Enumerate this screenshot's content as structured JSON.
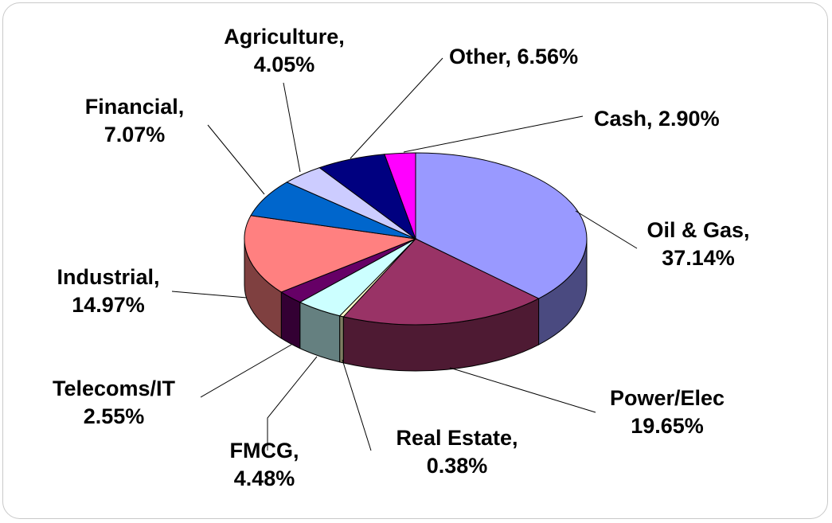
{
  "chart_data": {
    "type": "pie",
    "style": "3d",
    "start_category": "Oil & Gas",
    "direction": "clockwise",
    "slices": [
      {
        "label": "Oil & Gas,",
        "value": 37.14,
        "value_text": "37.14%",
        "color": "#9999ff",
        "side": "#4a4a80"
      },
      {
        "label": "Power/Elec",
        "value": 19.65,
        "value_text": "19.65%",
        "color": "#993366",
        "side": "#4e1a33"
      },
      {
        "label": "Real Estate,",
        "value": 0.38,
        "value_text": "0.38%",
        "color": "#ffffcc",
        "side": "#7d7d62"
      },
      {
        "label": "FMCG,",
        "value": 4.48,
        "value_text": "4.48%",
        "color": "#ccffff",
        "side": "#658080"
      },
      {
        "label": "Telecoms/IT",
        "value": 2.55,
        "value_text": "2.55%",
        "color": "#660066",
        "side": "#330033"
      },
      {
        "label": "Industrial,",
        "value": 14.97,
        "value_text": "14.97%",
        "color": "#ff8080",
        "side": "#7f4040"
      },
      {
        "label": "Financial,",
        "value": 7.07,
        "value_text": "7.07%",
        "color": "#0066cc",
        "side": "#003366"
      },
      {
        "label": "Agriculture,",
        "value": 4.05,
        "value_text": "4.05%",
        "color": "#ccccff",
        "side": "#666680"
      },
      {
        "label": "Other, 6.56%",
        "value": 6.56,
        "value_text": "",
        "color": "#000080",
        "side": "#000040"
      },
      {
        "label": "Cash, 2.90%",
        "value": 2.9,
        "value_text": "",
        "color": "#ff00ff",
        "side": "#800080"
      }
    ]
  }
}
